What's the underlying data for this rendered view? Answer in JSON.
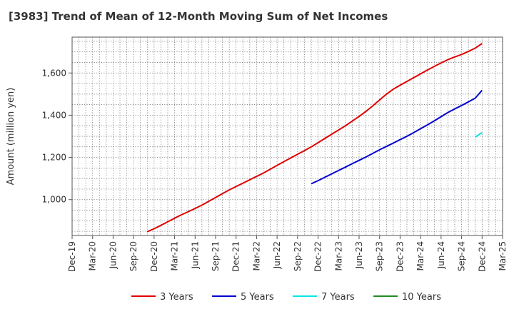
{
  "chart_data": {
    "type": "line",
    "title": "[3983]  Trend of Mean of 12-Month Moving Sum of Net Incomes",
    "xlabel": "",
    "ylabel": "Amount (million yen)",
    "x_tick_labels": [
      "Dec-19",
      "Mar-20",
      "Jun-20",
      "Sep-20",
      "Dec-20",
      "Mar-21",
      "Jun-21",
      "Sep-21",
      "Dec-21",
      "Mar-22",
      "Jun-22",
      "Sep-22",
      "Dec-22",
      "Mar-23",
      "Jun-23",
      "Sep-23",
      "Dec-23",
      "Mar-24",
      "Jun-24",
      "Sep-24",
      "Dec-24",
      "Mar-25"
    ],
    "y_ticks": [
      1000,
      1200,
      1400,
      1600
    ],
    "y_tick_labels": [
      "1,000",
      "1,200",
      "1,400",
      "1,600"
    ],
    "ylim": [
      830,
      1770
    ],
    "xlim": [
      "2019-12",
      "2025-03"
    ],
    "grid": true,
    "legend_position": "bottom",
    "series": [
      {
        "name": "3 Years",
        "color": "#e00000",
        "x": [
          "2020-11",
          "2020-12",
          "2021-01",
          "2021-02",
          "2021-03",
          "2021-04",
          "2021-05",
          "2021-06",
          "2021-07",
          "2021-08",
          "2021-09",
          "2021-10",
          "2021-11",
          "2021-12",
          "2022-01",
          "2022-02",
          "2022-03",
          "2022-04",
          "2022-05",
          "2022-06",
          "2022-07",
          "2022-08",
          "2022-09",
          "2022-10",
          "2022-11",
          "2022-12",
          "2023-01",
          "2023-02",
          "2023-03",
          "2023-04",
          "2023-05",
          "2023-06",
          "2023-07",
          "2023-08",
          "2023-09",
          "2023-10",
          "2023-11",
          "2023-12",
          "2024-01",
          "2024-02",
          "2024-03",
          "2024-04",
          "2024-05",
          "2024-06",
          "2024-07",
          "2024-08",
          "2024-09",
          "2024-10",
          "2024-11",
          "2024-12"
        ],
        "values": [
          848,
          862,
          878,
          895,
          912,
          928,
          943,
          958,
          974,
          992,
          1010,
          1028,
          1046,
          1062,
          1078,
          1094,
          1110,
          1126,
          1144,
          1162,
          1180,
          1198,
          1215,
          1232,
          1250,
          1270,
          1290,
          1310,
          1330,
          1350,
          1372,
          1394,
          1418,
          1444,
          1472,
          1500,
          1523,
          1542,
          1560,
          1578,
          1596,
          1614,
          1631,
          1648,
          1663,
          1676,
          1688,
          1702,
          1718,
          1740
        ]
      },
      {
        "name": "5 Years",
        "color": "#0000d0",
        "x": [
          "2022-11",
          "2022-12",
          "2023-01",
          "2023-02",
          "2023-03",
          "2023-04",
          "2023-05",
          "2023-06",
          "2023-07",
          "2023-08",
          "2023-09",
          "2023-10",
          "2023-11",
          "2023-12",
          "2024-01",
          "2024-02",
          "2024-03",
          "2024-04",
          "2024-05",
          "2024-06",
          "2024-07",
          "2024-08",
          "2024-09",
          "2024-10",
          "2024-11",
          "2024-12"
        ],
        "values": [
          1075,
          1090,
          1106,
          1122,
          1138,
          1154,
          1170,
          1186,
          1202,
          1219,
          1236,
          1252,
          1268,
          1284,
          1300,
          1318,
          1336,
          1354,
          1373,
          1393,
          1413,
          1430,
          1446,
          1463,
          1481,
          1518
        ]
      },
      {
        "name": "7 Years",
        "color": "#00e5e5",
        "x": [
          "2024-11",
          "2024-12"
        ],
        "values": [
          1296,
          1318
        ]
      },
      {
        "name": "10 Years",
        "color": "#228b22",
        "x": [],
        "values": []
      }
    ]
  }
}
